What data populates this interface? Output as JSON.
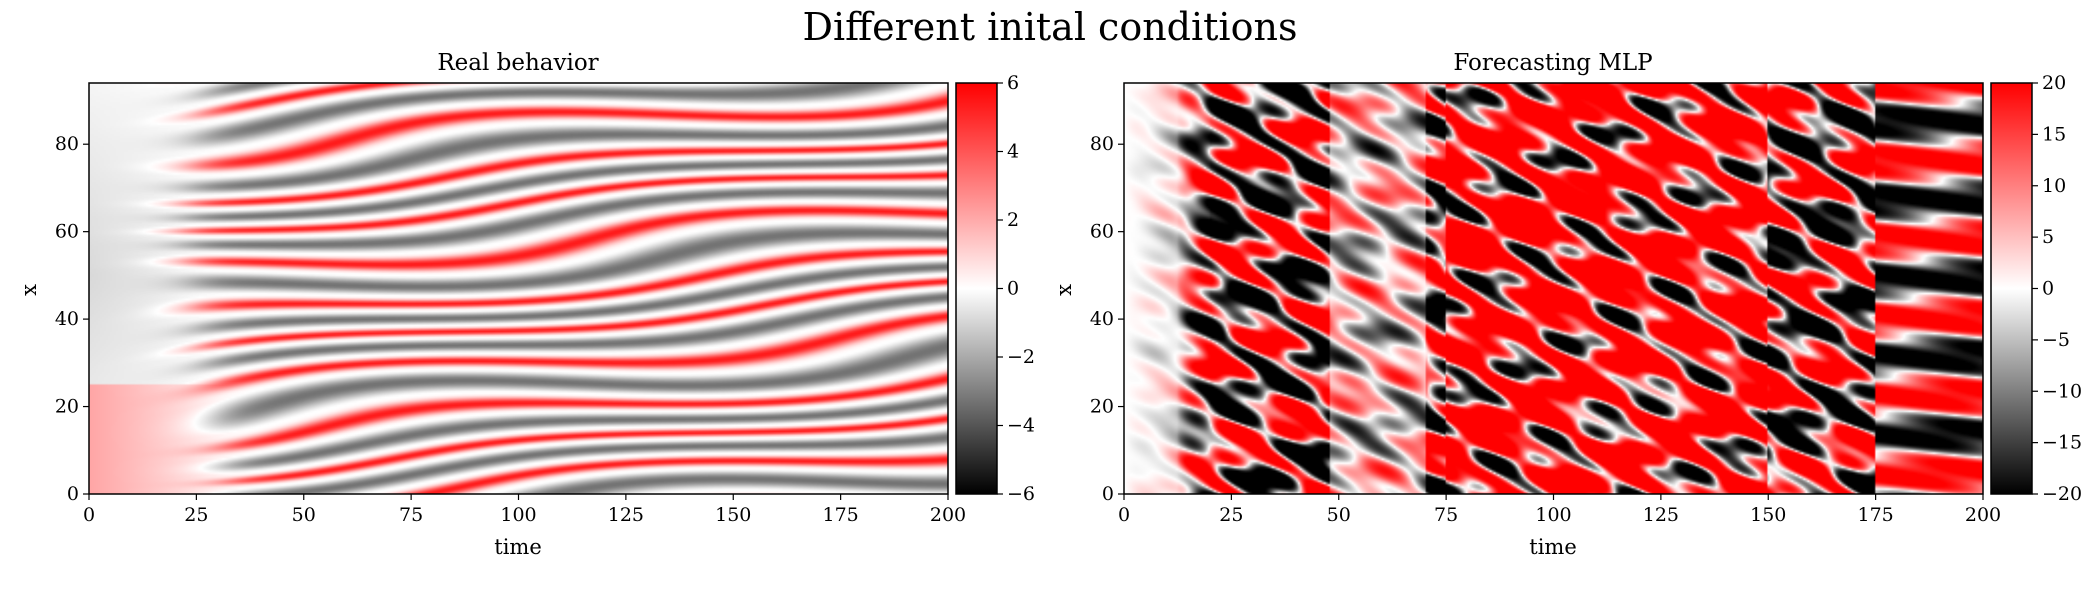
{
  "title": "Different inital conditions",
  "colors": {
    "positive": "#ff0000",
    "zero": "#ffffff",
    "negative": "#000000"
  },
  "chart_data": [
    {
      "type": "heatmap",
      "title": "Real behavior",
      "xlabel": "time",
      "ylabel": "x",
      "xlim": [
        0,
        200
      ],
      "ylim": [
        0,
        94
      ],
      "xticks": [
        0,
        25,
        50,
        75,
        100,
        125,
        150,
        175,
        200
      ],
      "yticks": [
        0,
        20,
        40,
        60,
        80
      ],
      "colorbar": {
        "range": [
          -6,
          6
        ],
        "ticks": [
          -6,
          -4,
          -2,
          0,
          2,
          4,
          6
        ],
        "tick_labels": [
          "−6",
          "−4",
          "−2",
          "0",
          "2",
          "4",
          "6"
        ]
      },
      "description_of_pattern": "Smooth diagonal stripes (alternating red / white / grey-black) emerging around time 20-40, quiescent light region on the left"
    },
    {
      "type": "heatmap",
      "title": "Forecasting MLP",
      "xlabel": "time",
      "ylabel": "x",
      "xlim": [
        0,
        200
      ],
      "ylim": [
        0,
        94
      ],
      "xticks": [
        0,
        25,
        50,
        75,
        100,
        125,
        150,
        175,
        200
      ],
      "yticks": [
        0,
        20,
        40,
        60,
        80
      ],
      "colorbar": {
        "range": [
          -20,
          20
        ],
        "ticks": [
          -20,
          -15,
          -10,
          -5,
          0,
          5,
          10,
          15,
          20
        ],
        "tick_labels": [
          "−20",
          "−15",
          "−10",
          "−5",
          "0",
          "5",
          "10",
          "15",
          "20"
        ]
      },
      "description_of_pattern": "Saturated red and black chaotic blobs, grey washed-out band near time 50-70 and light region near time 0-15"
    }
  ]
}
